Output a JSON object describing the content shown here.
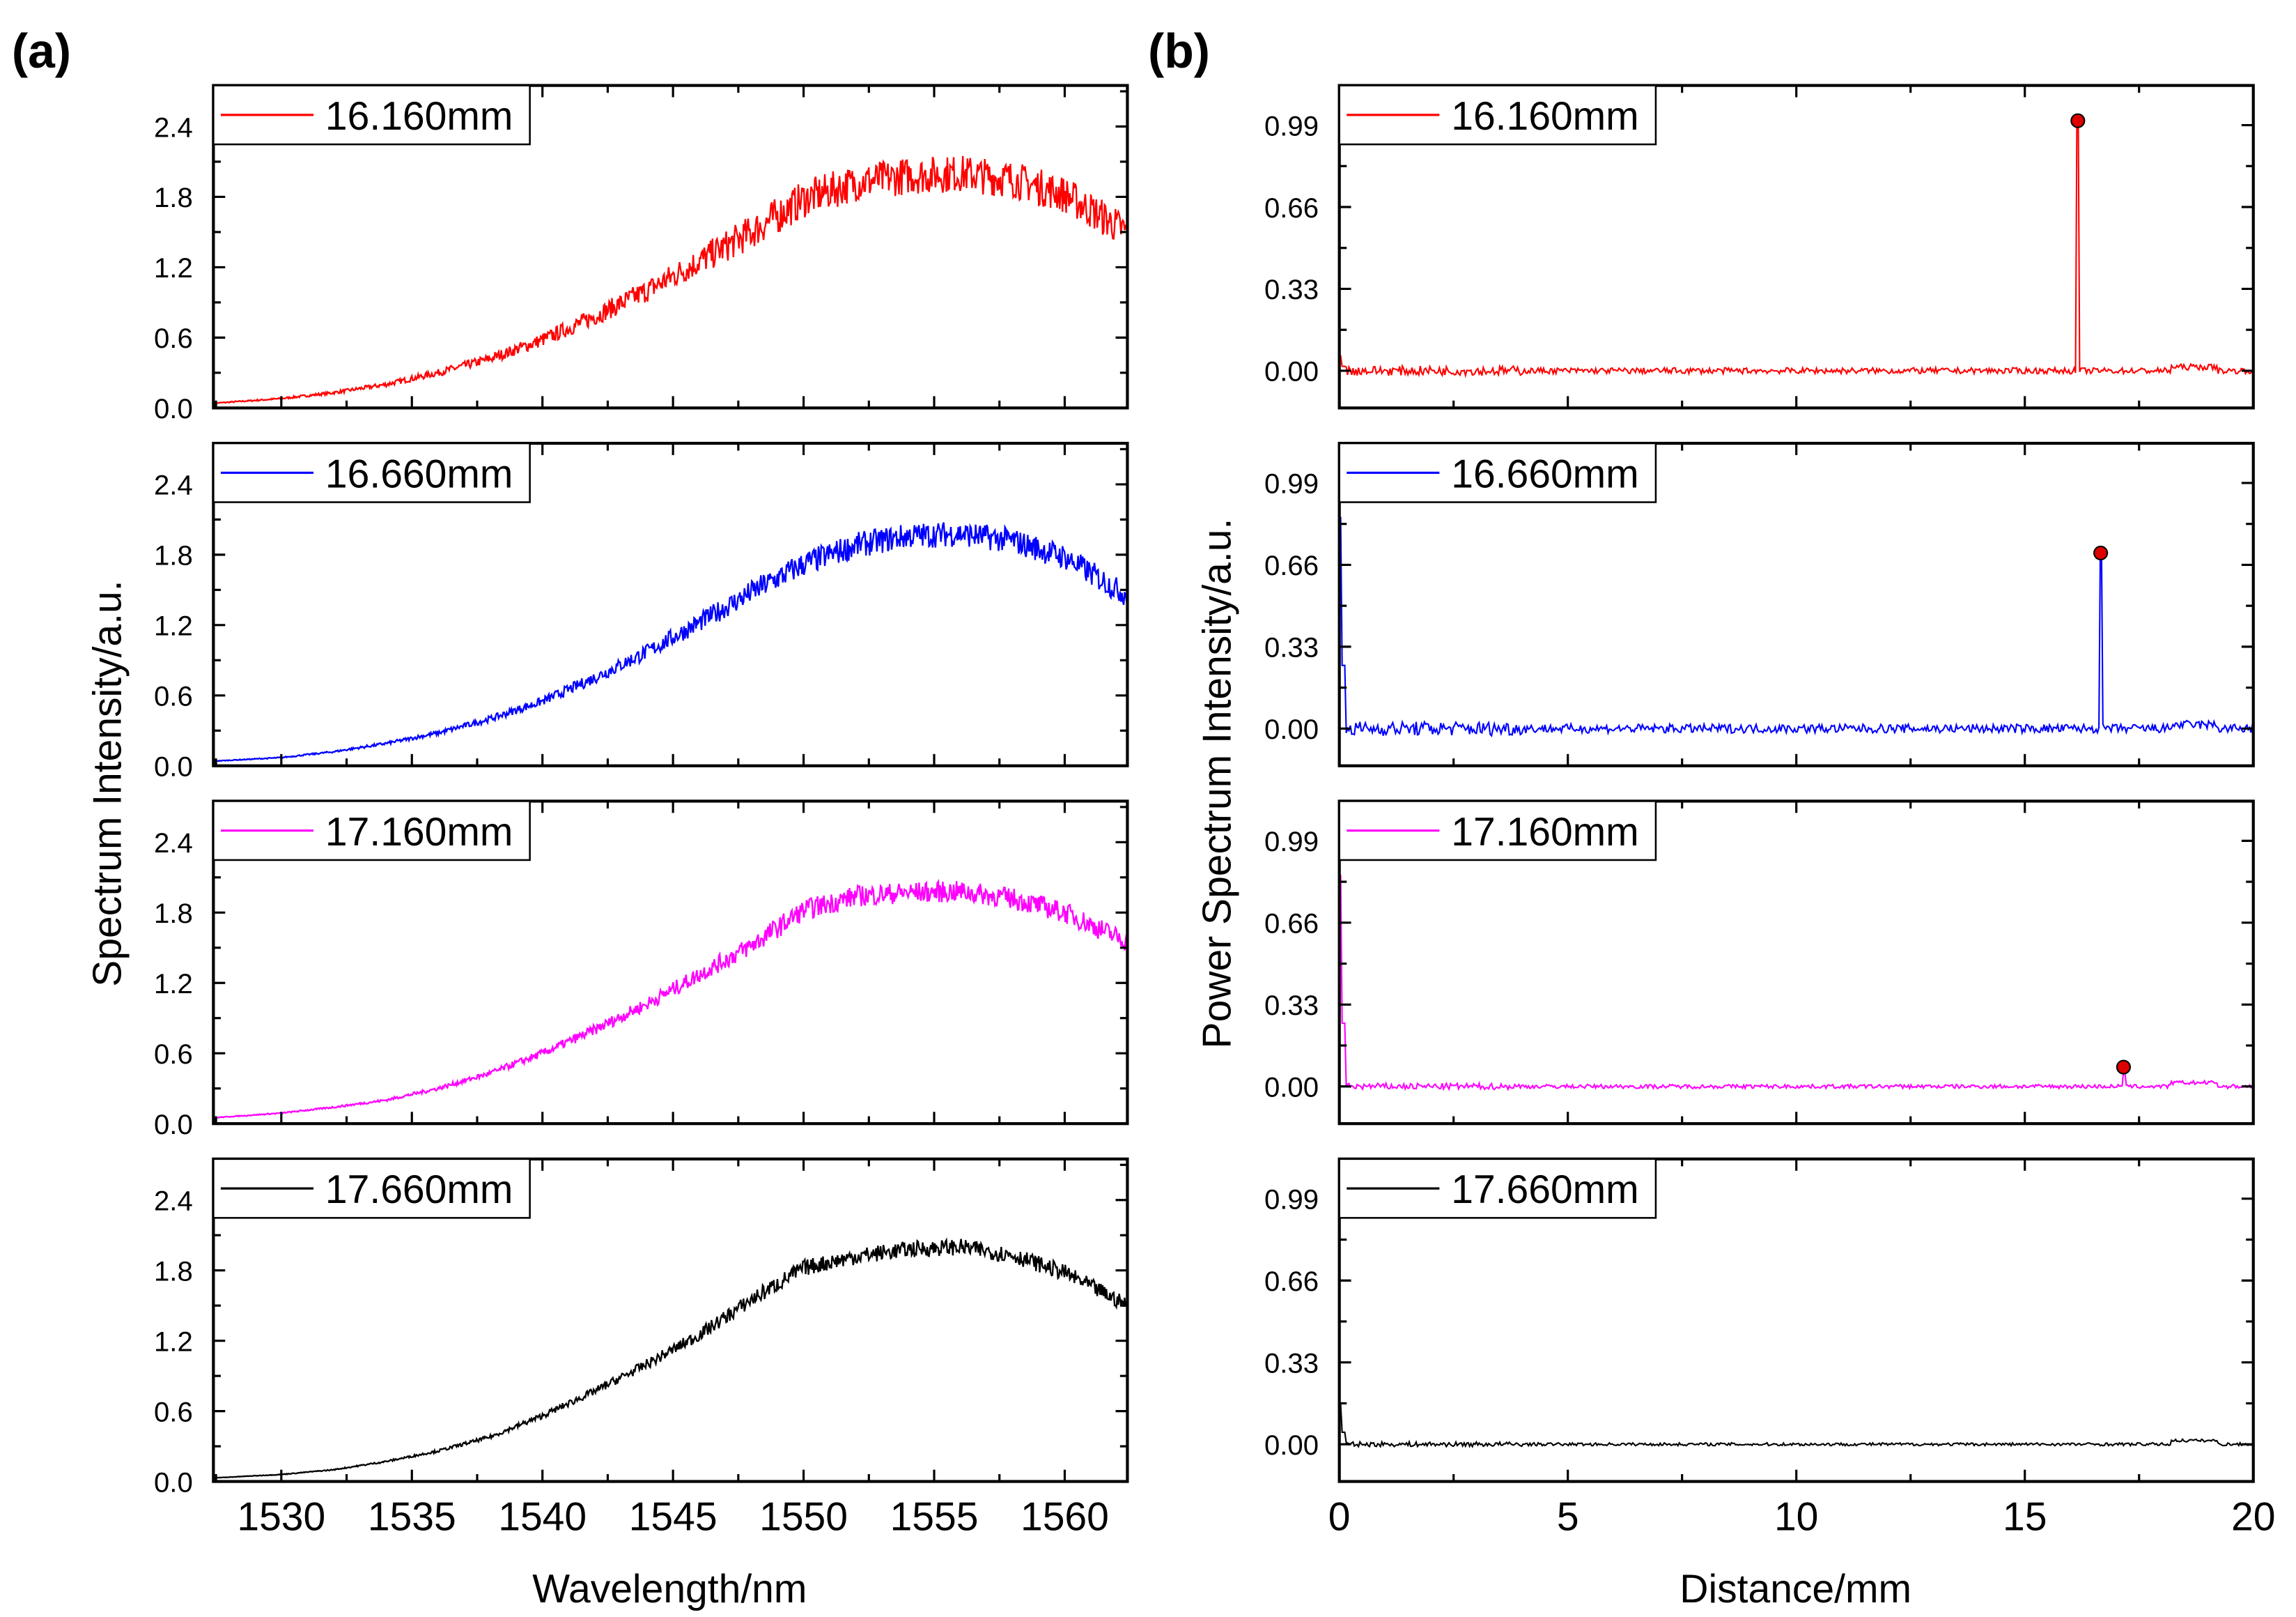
{
  "chart_data": [
    {
      "panel_label": "(a)",
      "type": "line",
      "xlabel": "Wavelength/nm",
      "ylabel": "Spectrum Intensity/a.u.",
      "xlim": [
        1527.4,
        1562.4
      ],
      "ylim": [
        0,
        2.75
      ],
      "xticks": [
        "1530",
        "1535",
        "1540",
        "1545",
        "1550",
        "1555",
        "1560"
      ],
      "xtick_values": [
        1530,
        1535,
        1540,
        1545,
        1550,
        1555,
        1560
      ],
      "yticks": [
        "0.0",
        "0.6",
        "1.2",
        "1.8",
        "2.4"
      ],
      "ytick_values": [
        0,
        0.6,
        1.2,
        1.8,
        2.4
      ],
      "envelope_x": [
        1527.4,
        1530,
        1532,
        1534,
        1536,
        1538,
        1540,
        1542,
        1544,
        1546,
        1548,
        1550,
        1552,
        1554,
        1556,
        1558,
        1560,
        1562.4
      ],
      "series": [
        {
          "name": "16.160mm",
          "color": "#ff0000",
          "noise": 0.16,
          "envelope_y": [
            0.04,
            0.08,
            0.13,
            0.2,
            0.3,
            0.42,
            0.58,
            0.78,
            1.0,
            1.25,
            1.5,
            1.78,
            1.92,
            1.98,
            2.0,
            1.95,
            1.82,
            1.5
          ]
        },
        {
          "name": "16.660mm",
          "color": "#0000ff",
          "noise": 0.11,
          "envelope_y": [
            0.04,
            0.07,
            0.12,
            0.19,
            0.28,
            0.4,
            0.55,
            0.75,
            0.97,
            1.22,
            1.48,
            1.72,
            1.88,
            1.96,
            1.98,
            1.92,
            1.78,
            1.45
          ]
        },
        {
          "name": "17.160mm",
          "color": "#ff00ff",
          "noise": 0.09,
          "envelope_y": [
            0.05,
            0.09,
            0.14,
            0.2,
            0.3,
            0.43,
            0.6,
            0.8,
            1.02,
            1.27,
            1.52,
            1.82,
            1.94,
            1.97,
            1.98,
            1.92,
            1.8,
            1.55
          ]
        },
        {
          "name": "17.660mm",
          "color": "#000000",
          "noise": 0.07,
          "envelope_y": [
            0.03,
            0.06,
            0.1,
            0.17,
            0.26,
            0.38,
            0.56,
            0.77,
            1.0,
            1.25,
            1.55,
            1.82,
            1.92,
            1.98,
            2.0,
            1.93,
            1.78,
            1.5
          ]
        }
      ]
    },
    {
      "panel_label": "(b)",
      "type": "line",
      "xlabel": "Distance/mm",
      "ylabel": "Power Spectrum Intensity/a.u.",
      "xlim": [
        0,
        20
      ],
      "ylim": [
        -0.15,
        1.15
      ],
      "xticks": [
        "0",
        "5",
        "10",
        "15",
        "20"
      ],
      "xtick_values": [
        0,
        5,
        10,
        15,
        20
      ],
      "yticks": [
        "0.00",
        "0.33",
        "0.66",
        "0.99"
      ],
      "ytick_values": [
        0,
        0.33,
        0.66,
        0.99
      ],
      "series": [
        {
          "name": "16.160mm",
          "color": "#ff0000",
          "start_spike": 0.06,
          "peak_x": 16.16,
          "peak_y": 0.99,
          "noise": 0.012
        },
        {
          "name": "16.660mm",
          "color": "#0000ff",
          "start_spike": 0.85,
          "peak_x": 16.66,
          "peak_y": 0.69,
          "noise": 0.018
        },
        {
          "name": "17.160mm",
          "color": "#ff00ff",
          "start_spike": 0.85,
          "peak_x": 17.16,
          "peak_y": 0.06,
          "noise": 0.008
        },
        {
          "name": "17.660mm",
          "color": "#000000",
          "start_spike": 0.16,
          "noise": 0.006
        }
      ],
      "marker_color": "#dd0000"
    }
  ]
}
